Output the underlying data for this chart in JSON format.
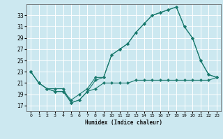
{
  "xlabel": "Humidex (Indice chaleur)",
  "bg_color": "#cce8f0",
  "grid_color": "#ffffff",
  "line_color": "#1a7a6e",
  "xlim": [
    -0.5,
    23.5
  ],
  "ylim": [
    16.0,
    35.0
  ],
  "xticks": [
    0,
    1,
    2,
    3,
    4,
    5,
    6,
    7,
    8,
    9,
    10,
    11,
    12,
    13,
    14,
    15,
    16,
    17,
    18,
    19,
    20,
    21,
    22,
    23
  ],
  "yticks": [
    17,
    19,
    21,
    23,
    25,
    27,
    29,
    31,
    33
  ],
  "line1_x": [
    0,
    1,
    2,
    3,
    4,
    5,
    6,
    7,
    8,
    9,
    10,
    11,
    12,
    13,
    14,
    15,
    16,
    17,
    18,
    19,
    20,
    21,
    22,
    23
  ],
  "line1_y": [
    23,
    21,
    20,
    20,
    20,
    17.5,
    18,
    19.5,
    20,
    21,
    21,
    21,
    21,
    21.5,
    21.5,
    21.5,
    21.5,
    21.5,
    21.5,
    21.5,
    21.5,
    21.5,
    21.5,
    22
  ],
  "line2_x": [
    0,
    1,
    2,
    3,
    4,
    5,
    6,
    7,
    8,
    9,
    10,
    11,
    12,
    13,
    14,
    15,
    16,
    17,
    18,
    19,
    20,
    21,
    22,
    23
  ],
  "line2_y": [
    23,
    21,
    20,
    19.5,
    19.5,
    18,
    19,
    20,
    22,
    22,
    26,
    27,
    28,
    30,
    31.5,
    33,
    33.5,
    34,
    34.5,
    31,
    29,
    25,
    22.5,
    22
  ],
  "line3_x": [
    0,
    1,
    2,
    3,
    4,
    5,
    6,
    7,
    8,
    9,
    10,
    11,
    12,
    13,
    14,
    15,
    16,
    17,
    18,
    19,
    20,
    21,
    22,
    23
  ],
  "line3_y": [
    23,
    21,
    20,
    19.5,
    19.5,
    17.5,
    18,
    19.5,
    21.5,
    22,
    26,
    27,
    28,
    30,
    31.5,
    33,
    33.5,
    34,
    34.5,
    31,
    29,
    25,
    22.5,
    22
  ]
}
